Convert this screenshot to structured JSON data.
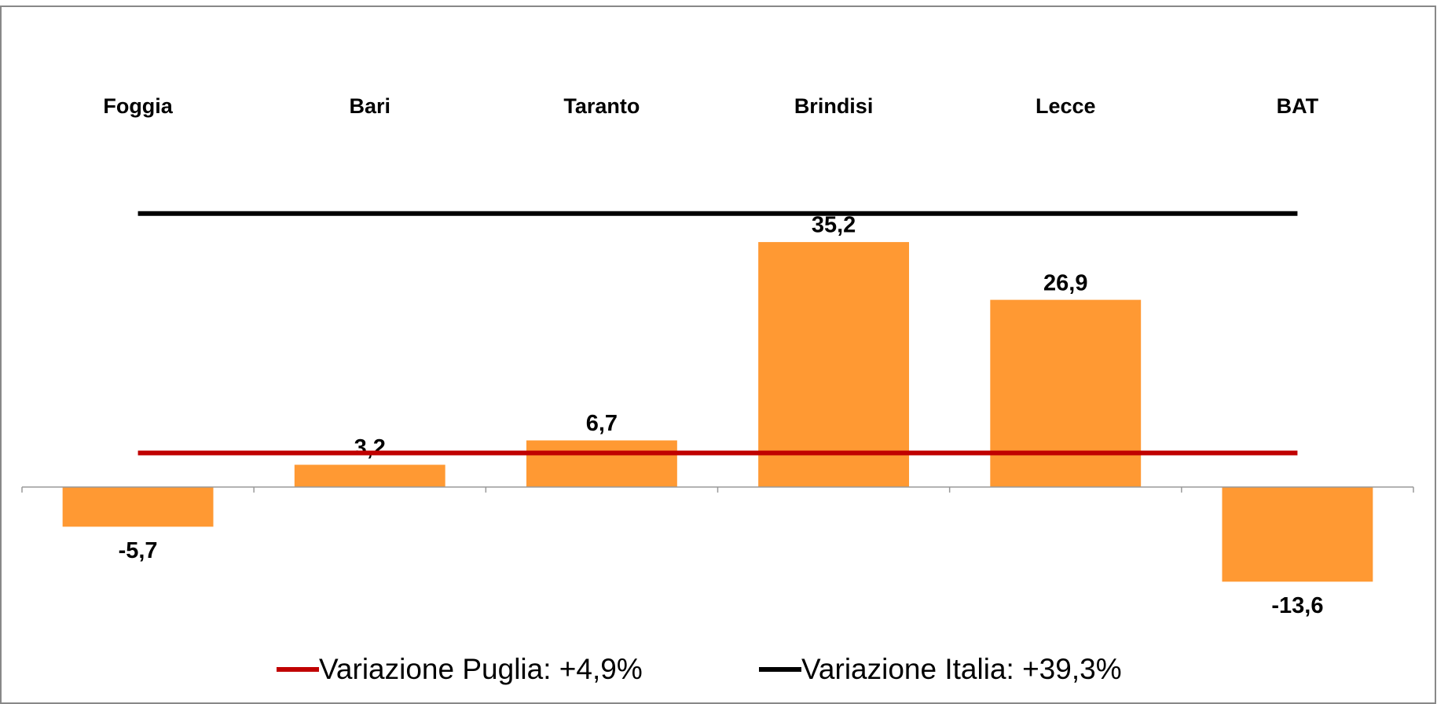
{
  "chart_data": {
    "type": "bar",
    "categories": [
      "Foggia",
      "Bari",
      "Taranto",
      "Brindisi",
      "Lecce",
      "BAT"
    ],
    "values": [
      -5.7,
      3.2,
      6.7,
      35.2,
      26.9,
      -13.6
    ],
    "value_labels": [
      "-5,7",
      "3,2",
      "6,7",
      "35,2",
      "26,9",
      "-13,6"
    ],
    "color": "#ff9933",
    "ylim": [
      -20,
      50
    ],
    "reference_lines": [
      {
        "name": "Variazione Puglia: +4,9%",
        "color": "#c00000",
        "value": 4.9
      },
      {
        "name": "Variazione Italia: +39,3%",
        "color": "#000000",
        "value": 39.3
      }
    ],
    "legend": "bottom"
  }
}
